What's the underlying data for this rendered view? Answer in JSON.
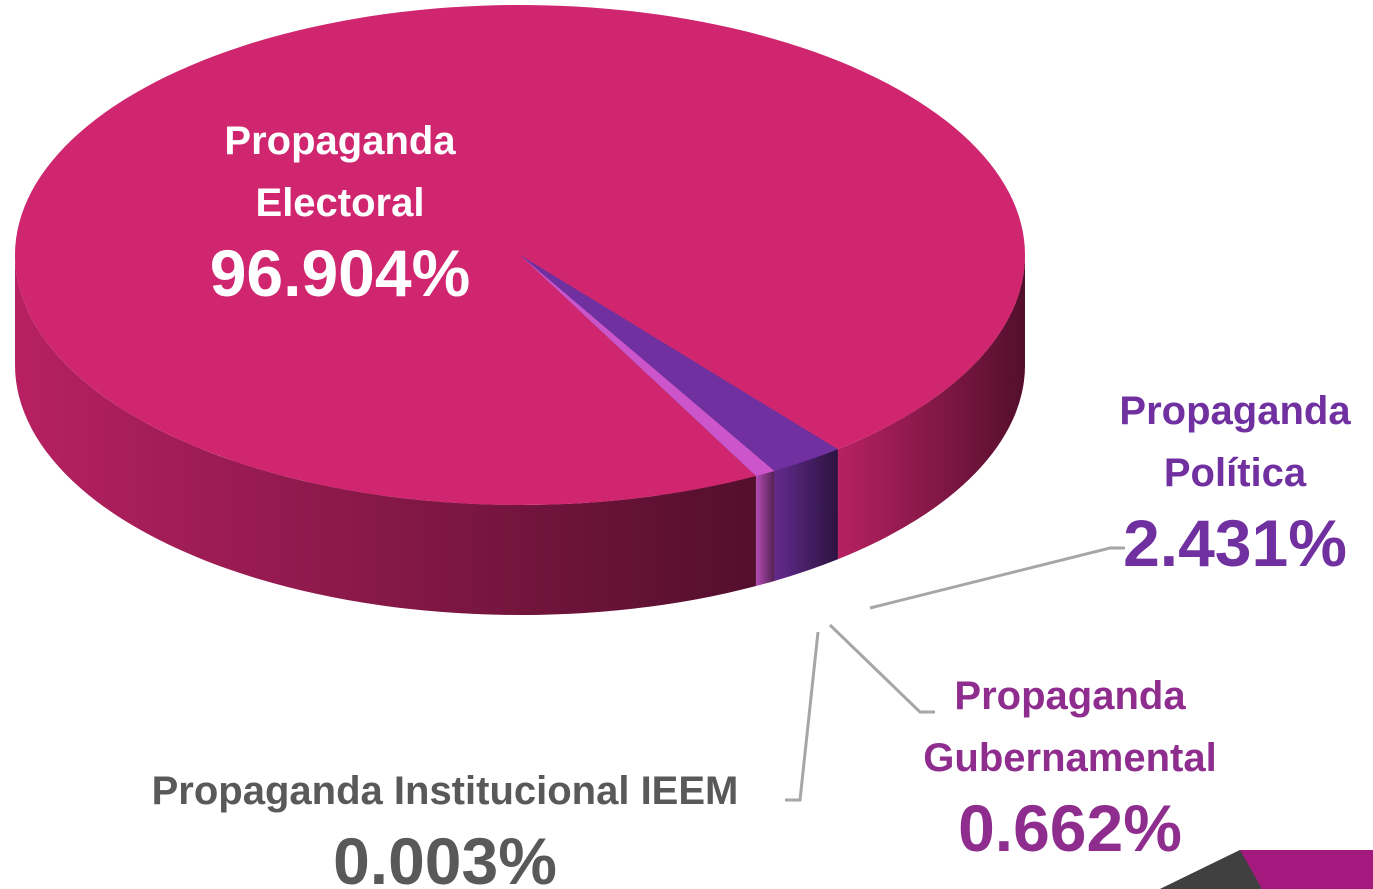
{
  "chart_data": {
    "type": "pie",
    "categories": [
      "Propaganda Electoral",
      "Propaganda Política",
      "Propaganda Gubernamental",
      "Propaganda Institucional IEEM"
    ],
    "values": [
      96.904,
      2.431,
      0.662,
      0.003
    ],
    "value_labels": [
      "96.904%",
      "2.431%",
      "0.662%",
      "0.003%"
    ],
    "colors": [
      "#d0256f",
      "#7030a0",
      "#cc55cc",
      "#7f7f7f"
    ],
    "label_colors": [
      "#ffffff",
      "#7030a0",
      "#8e2d8e",
      "#595959"
    ]
  }
}
